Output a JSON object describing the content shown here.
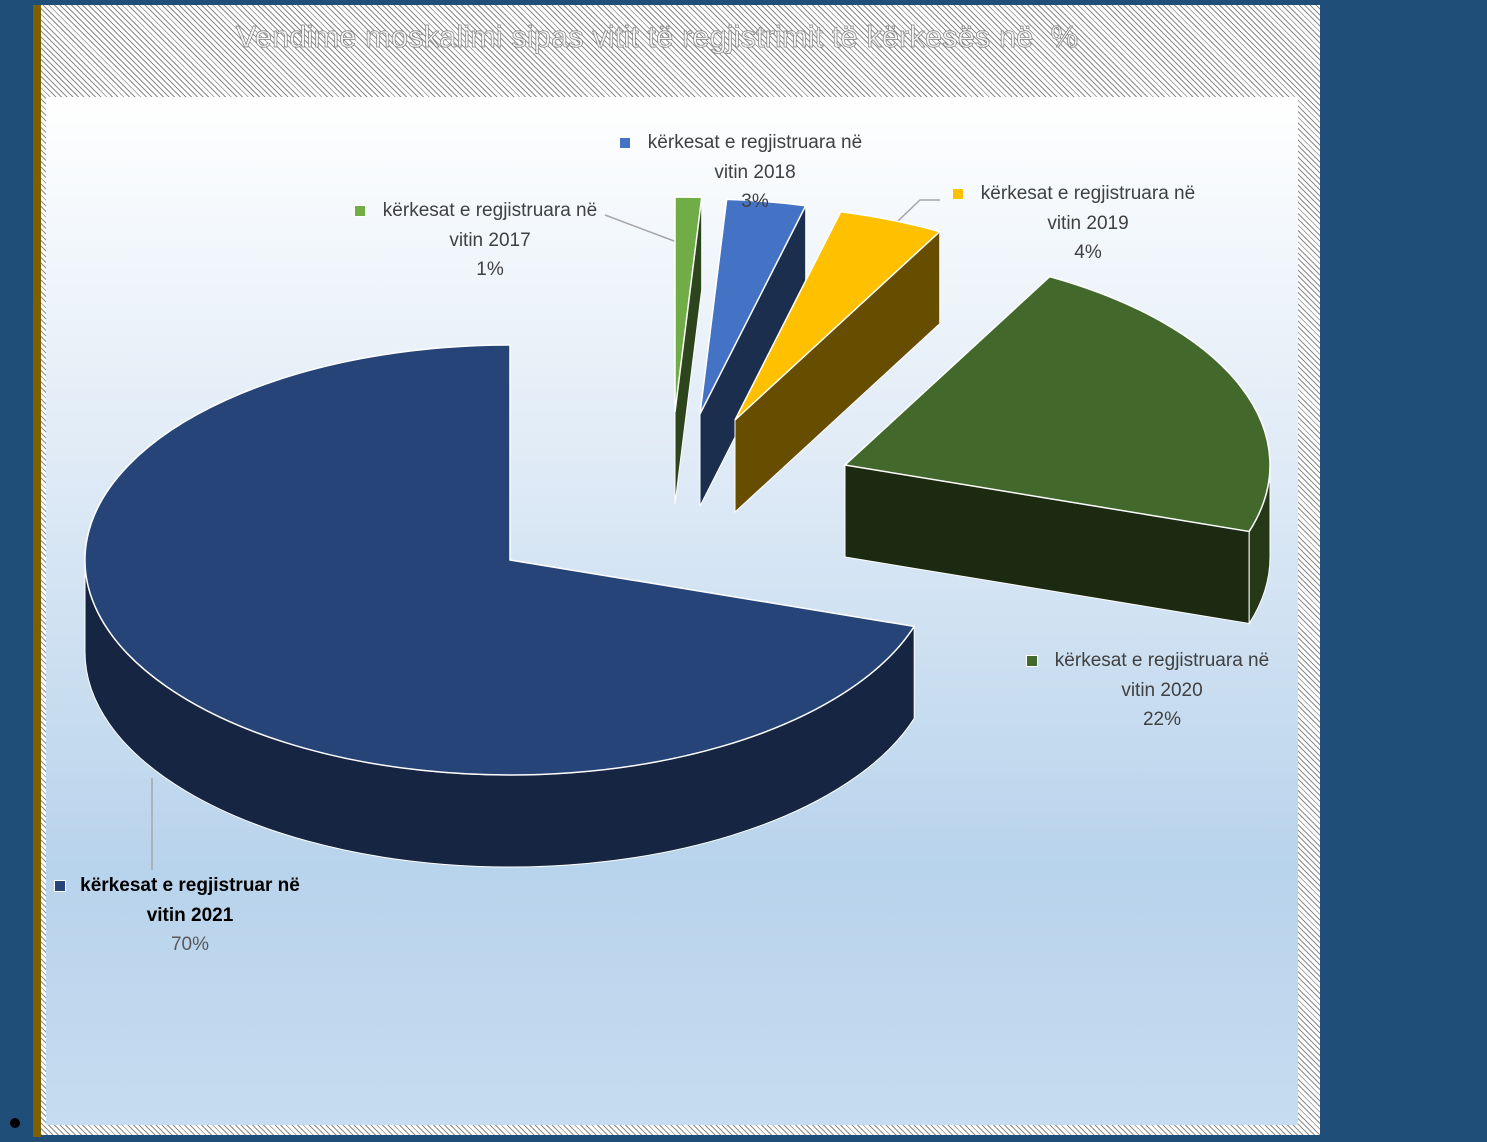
{
  "chart_data": {
    "type": "pie3d",
    "title": "Vendime moskalimi sipas vitit të regjistrimit të kërkesës në  %",
    "categories": [
      "kërkesat e regjistruara në vitin 2017",
      "kërkesat e regjistruara në vitin 2018",
      "kërkesat e regjistruara në vitin 2019",
      "kërkesat e regjistruara në vitin 2020",
      "kërkesat e regjistruar në vitin 2021"
    ],
    "values": [
      1,
      3,
      4,
      22,
      70
    ],
    "value_labels": [
      "1%",
      "3%",
      "4%",
      "22%",
      "70%"
    ],
    "colors": [
      "#70ad47",
      "#4472c4",
      "#ffc000",
      "#43682b",
      "#264478"
    ]
  }
}
